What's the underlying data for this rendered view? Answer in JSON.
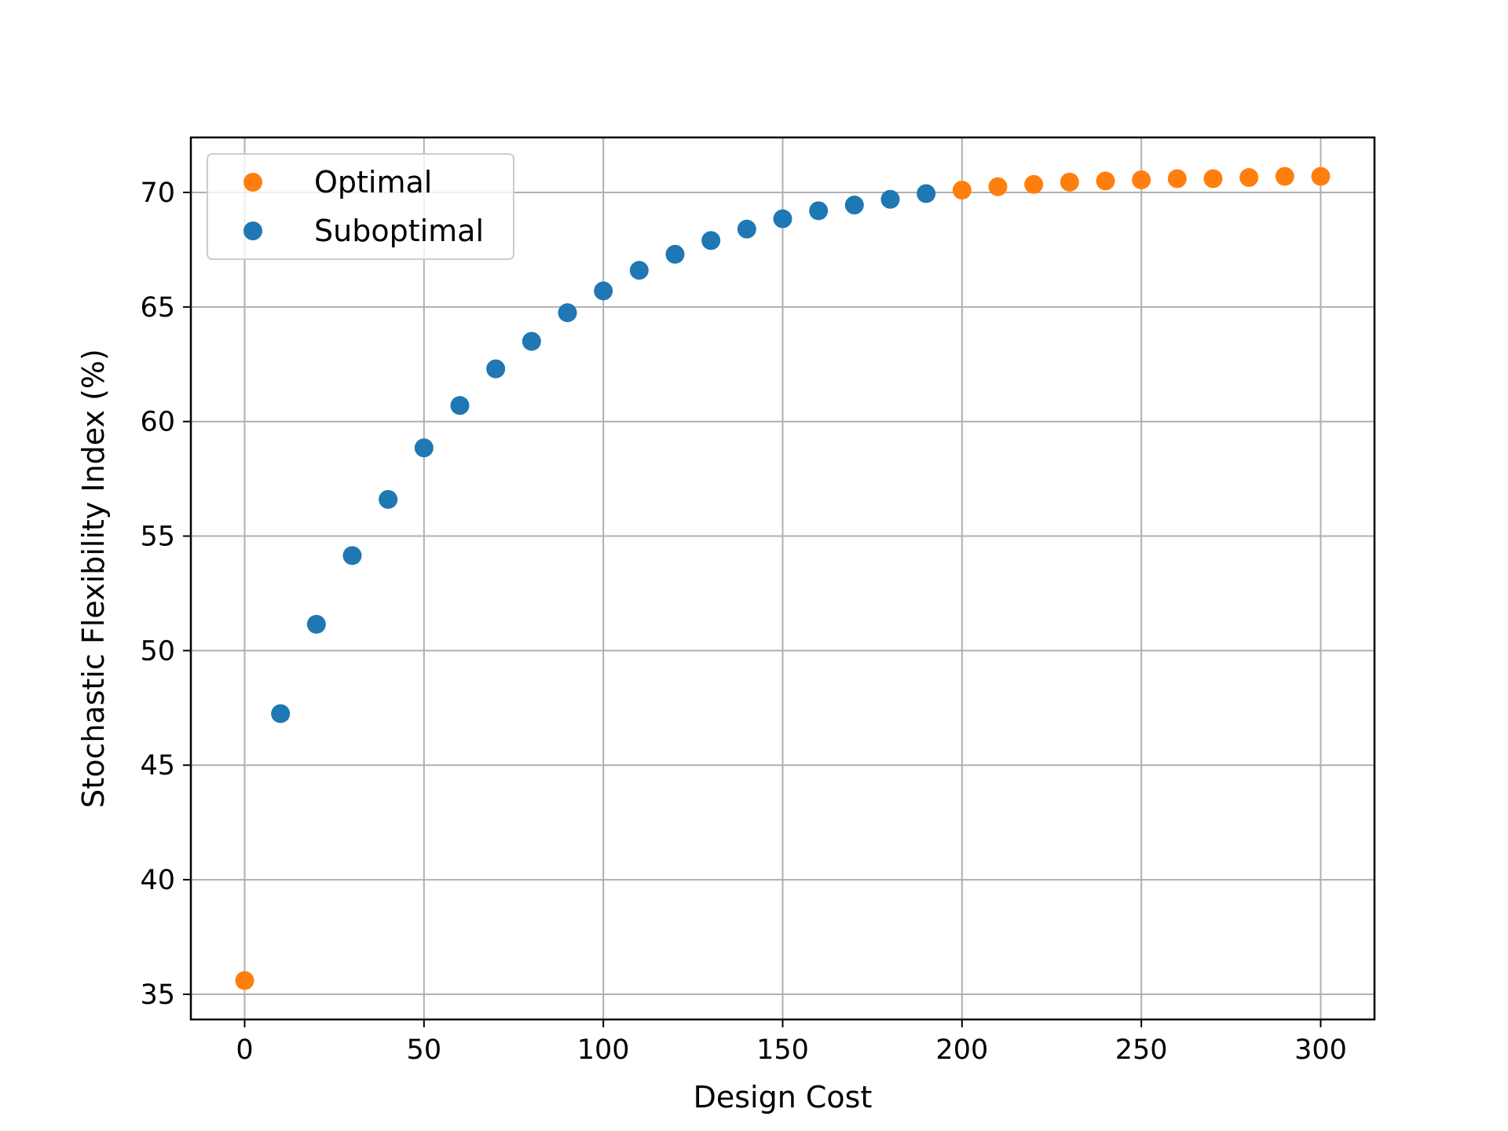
{
  "chart_data": {
    "type": "scatter",
    "xlabel": "Design Cost",
    "ylabel": "Stochastic Flexibility Index (%)",
    "xlim": [
      -15,
      315
    ],
    "ylim": [
      33.9,
      72.4
    ],
    "xticks": [
      0,
      50,
      100,
      150,
      200,
      250,
      300
    ],
    "yticks": [
      35,
      40,
      45,
      50,
      55,
      60,
      65,
      70
    ],
    "grid": true,
    "legend_position": "top-left",
    "series": [
      {
        "name": "Optimal",
        "color": "#ff7f0e",
        "points": [
          [
            0,
            35.6
          ],
          [
            200,
            70.1
          ],
          [
            210,
            70.25
          ],
          [
            220,
            70.35
          ],
          [
            230,
            70.45
          ],
          [
            240,
            70.5
          ],
          [
            250,
            70.55
          ],
          [
            260,
            70.6
          ],
          [
            270,
            70.6
          ],
          [
            280,
            70.65
          ],
          [
            290,
            70.7
          ],
          [
            300,
            70.7
          ]
        ]
      },
      {
        "name": "Suboptimal",
        "color": "#1f77b4",
        "points": [
          [
            10,
            47.25
          ],
          [
            20,
            51.15
          ],
          [
            30,
            54.15
          ],
          [
            40,
            56.6
          ],
          [
            50,
            58.85
          ],
          [
            60,
            60.7
          ],
          [
            70,
            62.3
          ],
          [
            80,
            63.5
          ],
          [
            90,
            64.75
          ],
          [
            100,
            65.7
          ],
          [
            110,
            66.6
          ],
          [
            120,
            67.3
          ],
          [
            130,
            67.9
          ],
          [
            140,
            68.4
          ],
          [
            150,
            68.85
          ],
          [
            160,
            69.2
          ],
          [
            170,
            69.45
          ],
          [
            180,
            69.7
          ],
          [
            190,
            69.95
          ]
        ]
      }
    ]
  }
}
